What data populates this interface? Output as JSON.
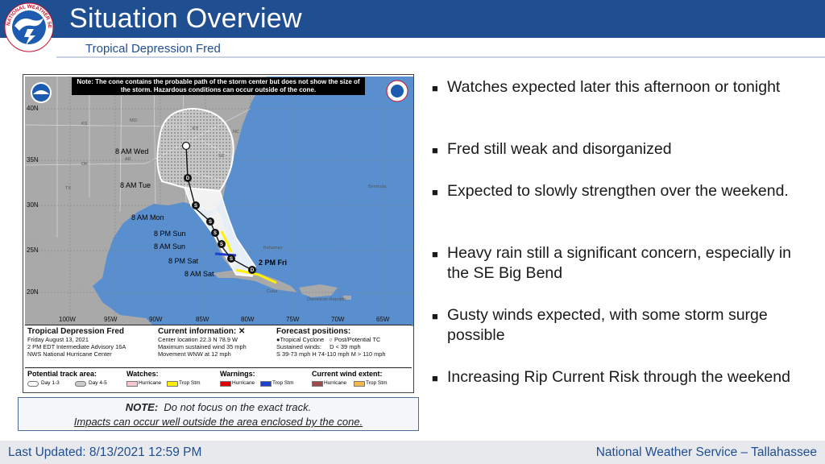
{
  "header": {
    "title": "Situation Overview",
    "subtitle": "Tropical Depression Fred",
    "logo_text": "NATIONAL WEATHER SERVICE",
    "brand_color": "#1f4e91"
  },
  "graphic": {
    "note": "Note: The cone contains the probable path of the storm center but does not show the size of the storm. Hazardous conditions can occur outside of the cone.",
    "lat_labels": [
      "40N",
      "35N",
      "30N",
      "25N",
      "20N"
    ],
    "lon_labels": [
      "100W",
      "95W",
      "90W",
      "85W",
      "80W",
      "75W",
      "70W",
      "65W"
    ],
    "state_labels": [
      "KS",
      "MO",
      "OK",
      "AR",
      "TX",
      "KY",
      "NC",
      "SC",
      "Bermuda",
      "Bahamas",
      "Cuba",
      "Dominican Republic"
    ],
    "track_points": [
      {
        "label": "2 PM Fri",
        "symbol": "D"
      },
      {
        "label": "8 AM Sat",
        "symbol": "S"
      },
      {
        "label": "8 PM Sat",
        "symbol": "S"
      },
      {
        "label": "8 AM Sun",
        "symbol": "S"
      },
      {
        "label": "8 PM Sun",
        "symbol": "S"
      },
      {
        "label": "8 AM Mon",
        "symbol": "S"
      },
      {
        "label": "8 AM Tue",
        "symbol": "D"
      },
      {
        "label": "8 AM Wed",
        "symbol": ""
      }
    ],
    "storm_name": "Tropical Depression Fred",
    "advisory_lines": [
      "Friday August 13, 2021",
      "2 PM EDT Intermediate Advisory 16A",
      "NWS National Hurricane Center"
    ],
    "current_info_title": "Current information:",
    "current_info_lines": [
      "Center location 22.3 N 78.9 W",
      "Maximum sustained wind 35 mph",
      "Movement WNW at 12 mph"
    ],
    "forecast_title": "Forecast positions:",
    "forecast_lines": [
      "Tropical Cyclone",
      "Post/Potential TC",
      "Sustained winds:",
      "D < 39 mph",
      "S 39-73 mph  H 74-110 mph  M > 110 mph"
    ],
    "legend": {
      "track_area": "Potential track area:",
      "day13": "Day 1-3",
      "day45": "Day 4-5",
      "watches": "Watches:",
      "warnings": "Warnings:",
      "wind_extent": "Current wind extent:",
      "hurricane": "Hurricane",
      "trop_stm": "Trop Stm"
    }
  },
  "note_box": {
    "label": "NOTE:",
    "line1": "Do not focus on the exact track.",
    "line2": "Impacts can occur well outside the area enclosed by the cone."
  },
  "bullets": [
    "Watches expected later this afternoon or tonight",
    "Fred still weak and disorganized",
    "Expected to slowly strengthen over the weekend.",
    "Heavy rain still a significant concern, especially in the SE Big Bend",
    "Gusty winds expected, with some storm surge possible",
    "Increasing Rip Current Risk through the weekend"
  ],
  "footer": {
    "last_updated": "Last Updated:  8/13/2021 12:59 PM",
    "office": "National Weather Service – Tallahassee"
  }
}
